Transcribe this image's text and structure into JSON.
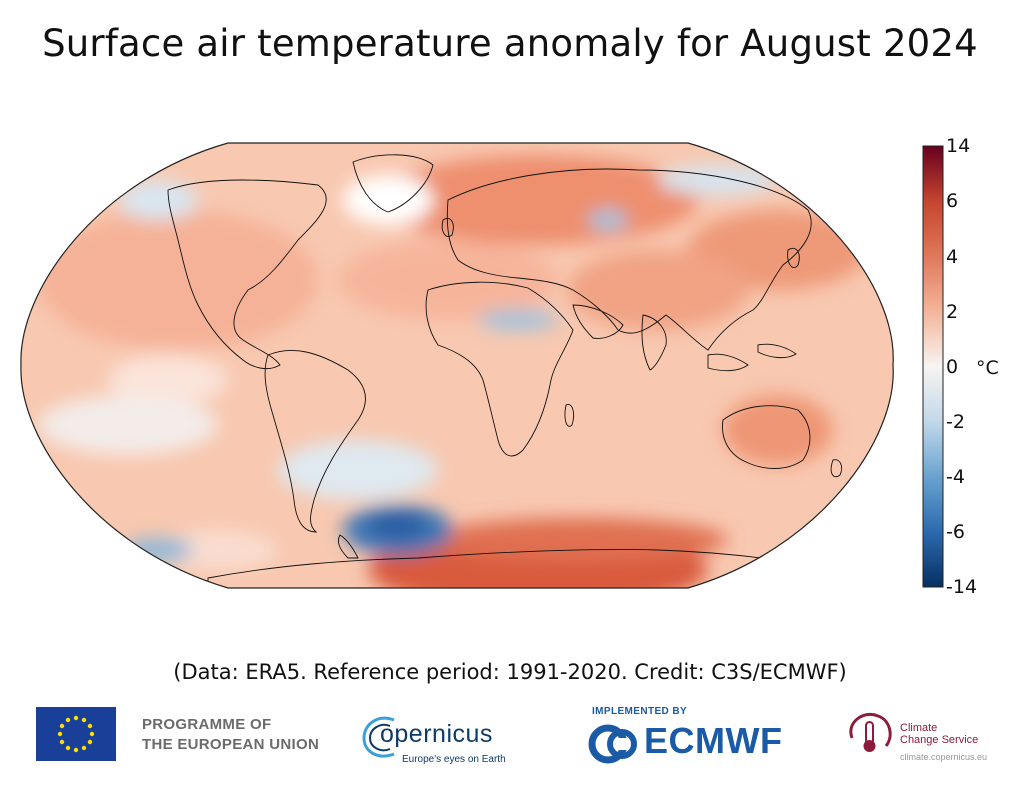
{
  "title": "Surface air temperature anomaly for August 2024",
  "colorbar": {
    "unit": "°C",
    "ticks": [
      "14",
      "6",
      "4",
      "2",
      "0",
      "-2",
      "-4",
      "-6",
      "-14"
    ],
    "colors": [
      "#67001f",
      "#b2182b",
      "#d6604d",
      "#f4a582",
      "#fddbc7",
      "#f7f7f7",
      "#d1e5f0",
      "#92c5de",
      "#4393c3",
      "#2166ac",
      "#053061"
    ]
  },
  "credit": "(Data: ERA5. Reference period: 1991-2020. Credit: C3S/ECMWF)",
  "logos": {
    "eu_line1": "PROGRAMME OF",
    "eu_line2": "THE EUROPEAN UNION",
    "copernicus": "opernicus",
    "copernicus_tagline": "Europe's eyes on Earth",
    "ecmwf_implemented": "IMPLEMENTED BY",
    "ecmwf": "ECMWF",
    "c3s_line1": "Climate",
    "c3s_line2": "Change Service",
    "c3s_url": "climate.copernicus.eu"
  }
}
